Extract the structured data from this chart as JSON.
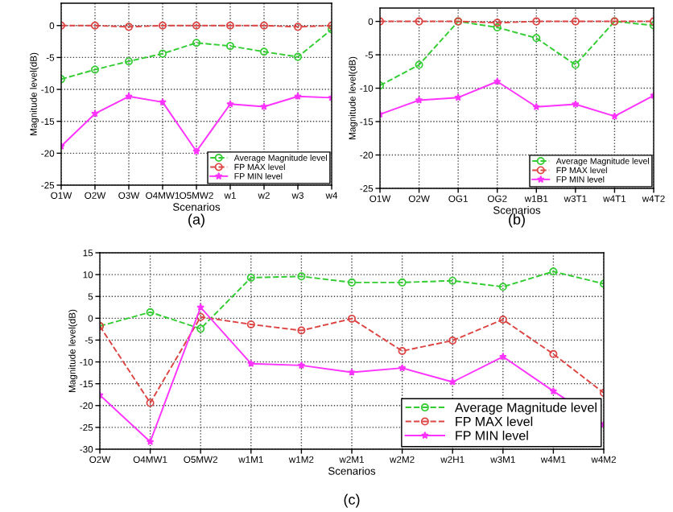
{
  "chart_data": [
    {
      "type": "line",
      "xlabel": "Scenarios",
      "ylabel": "Magnitude level(dB)",
      "categories": [
        "O1W",
        "O2W",
        "O3W",
        "O4MW1",
        "O5MW2",
        "w1",
        "w2",
        "w3",
        "w4"
      ],
      "ylim": [
        -25,
        3.5
      ],
      "yticks": [
        0,
        -5,
        -10,
        -15,
        -20,
        -25
      ],
      "grid": true,
      "legend": "bottom right",
      "annotations": [
        "(a)"
      ],
      "series": [
        {
          "name": "Average Magnitude level",
          "color": "#33cc33",
          "marker": "circle",
          "line_style": "dashed",
          "values": [
            -8.4,
            -6.9,
            -5.6,
            -4.4,
            -2.7,
            -3.2,
            -4.1,
            -4.9,
            -0.6
          ]
        },
        {
          "name": "FP MAX level",
          "color": "#dd4444",
          "marker": "circle",
          "line_style": "dashed",
          "values": [
            0,
            0,
            -0.2,
            0,
            0,
            0,
            0,
            -0.2,
            0
          ]
        },
        {
          "name": "FP MIN level",
          "color": "#ff33ff",
          "marker": "star",
          "line_style": "solid",
          "values": [
            -18.9,
            -13.8,
            -11.1,
            -12.0,
            -19.7,
            -12.3,
            -12.7,
            -11.1,
            -11.3
          ]
        }
      ]
    },
    {
      "type": "line",
      "xlabel": "Scenarios",
      "ylabel": "Magnitude level(dB)",
      "categories": [
        "O1W",
        "O2W",
        "OG1",
        "OG2",
        "w1B1",
        "w3T1",
        "w4T1",
        "w4T2"
      ],
      "ylim": [
        -25,
        2
      ],
      "yticks": [
        0,
        -5,
        -10,
        -15,
        -20,
        -25
      ],
      "grid": true,
      "legend": "bottom right",
      "annotations": [
        "(b)"
      ],
      "series": [
        {
          "name": "Average Magnitude level",
          "color": "#33cc33",
          "marker": "circle",
          "line_style": "dashed",
          "values": [
            -9.6,
            -6.5,
            0,
            -0.9,
            -2.5,
            -6.5,
            0,
            -0.6
          ]
        },
        {
          "name": "FP MAX level",
          "color": "#dd4444",
          "marker": "circle",
          "line_style": "dashed",
          "values": [
            0,
            0,
            0,
            -0.2,
            0,
            0,
            0,
            0
          ]
        },
        {
          "name": "FP MIN level",
          "color": "#ff33ff",
          "marker": "star",
          "line_style": "solid",
          "values": [
            -13.9,
            -11.8,
            -11.4,
            -9.0,
            -12.8,
            -12.4,
            -14.2,
            -11.1
          ]
        }
      ]
    },
    {
      "type": "line",
      "xlabel": "Scenarios",
      "ylabel": "Magnitude level(dB)",
      "categories": [
        "O2W",
        "O4MW1",
        "O5MW2",
        "w1M1",
        "w1M2",
        "w2M1",
        "w2M2",
        "w2H1",
        "w3M1",
        "w4M1",
        "w4M2"
      ],
      "ylim": [
        -30,
        15
      ],
      "yticks": [
        15,
        10,
        5,
        0,
        -5,
        -10,
        -15,
        -20,
        -25,
        -30
      ],
      "grid": true,
      "legend": "bottom right",
      "annotations": [
        "(c)"
      ],
      "series": [
        {
          "name": "Average Magnitude level",
          "color": "#33cc33",
          "marker": "circle",
          "line_style": "dashed",
          "values": [
            -1.8,
            1.4,
            -2.4,
            9.3,
            9.6,
            8.2,
            8.2,
            8.6,
            7.2,
            10.7,
            7.9
          ]
        },
        {
          "name": "FP MAX level",
          "color": "#dd4444",
          "marker": "circle",
          "line_style": "dashed",
          "values": [
            -1.8,
            -19.4,
            0.3,
            -1.4,
            -2.8,
            -0.1,
            -7.5,
            -5.1,
            -0.3,
            -8.2,
            -17.1
          ]
        },
        {
          "name": "FP MIN level",
          "color": "#ff33ff",
          "marker": "star",
          "line_style": "solid",
          "values": [
            -17.6,
            -28.3,
            2.5,
            -10.4,
            -10.8,
            -12.4,
            -11.4,
            -14.6,
            -8.8,
            -16.7,
            -24.3
          ]
        }
      ]
    }
  ]
}
